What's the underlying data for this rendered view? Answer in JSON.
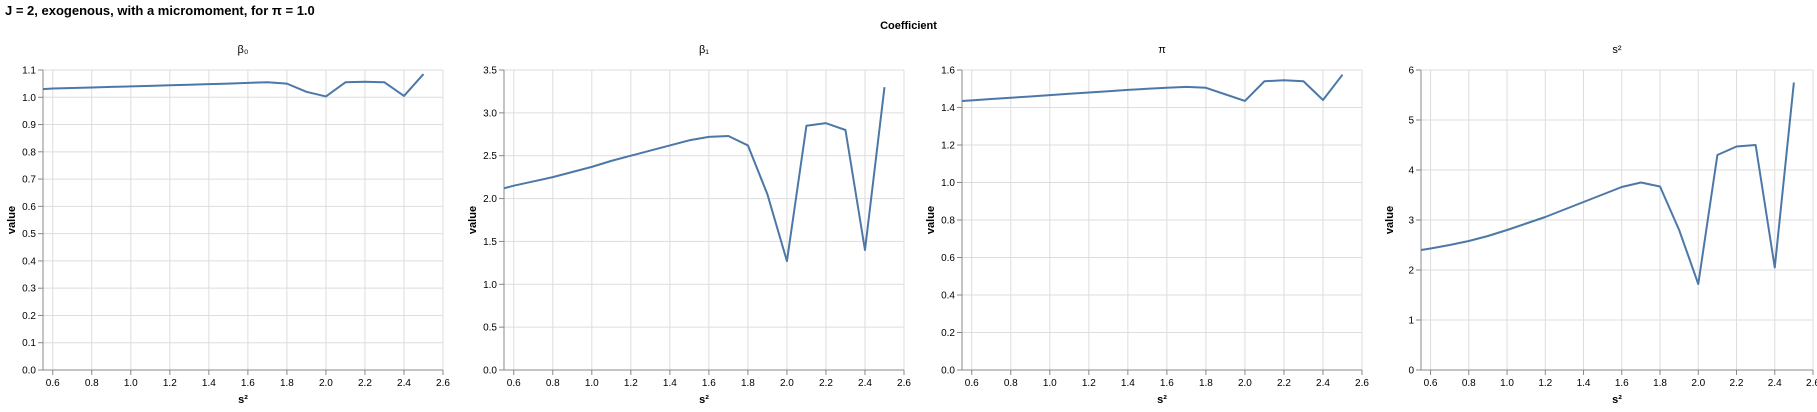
{
  "title": "J = 2, exogenous, with a micromoment,  for π = 1.0",
  "facet_header": "Coefficient",
  "colors": {
    "line": "#4c78a8",
    "grid": "#dddddd",
    "axis": "#888888",
    "text": "#000000"
  },
  "chart_data": [
    {
      "type": "line",
      "panel_title": "β₀",
      "xlabel": "s²",
      "ylabel": "value",
      "xlim": [
        0.55,
        2.6
      ],
      "ylim": [
        0,
        1.1
      ],
      "xticks": [
        0.6,
        0.8,
        1.0,
        1.2,
        1.4,
        1.6,
        1.8,
        2.0,
        2.2,
        2.4,
        2.6
      ],
      "yticks": [
        0.0,
        0.1,
        0.2,
        0.3,
        0.4,
        0.5,
        0.6,
        0.7,
        0.8,
        0.9,
        1.0,
        1.1
      ],
      "grid": true,
      "x": [
        0.55,
        0.6,
        0.7,
        0.8,
        0.9,
        1.0,
        1.1,
        1.2,
        1.3,
        1.4,
        1.5,
        1.6,
        1.7,
        1.8,
        1.9,
        2.0,
        2.1,
        2.2,
        2.3,
        2.4,
        2.5
      ],
      "y": [
        1.03,
        1.032,
        1.034,
        1.036,
        1.038,
        1.04,
        1.042,
        1.044,
        1.046,
        1.048,
        1.05,
        1.053,
        1.055,
        1.05,
        1.02,
        1.003,
        1.055,
        1.057,
        1.055,
        1.005,
        1.085
      ]
    },
    {
      "type": "line",
      "panel_title": "β₁",
      "xlabel": "s²",
      "ylabel": "value",
      "xlim": [
        0.55,
        2.6
      ],
      "ylim": [
        0,
        3.5
      ],
      "xticks": [
        0.6,
        0.8,
        1.0,
        1.2,
        1.4,
        1.6,
        1.8,
        2.0,
        2.2,
        2.4,
        2.6
      ],
      "yticks": [
        0.0,
        0.5,
        1.0,
        1.5,
        2.0,
        2.5,
        3.0,
        3.5
      ],
      "grid": true,
      "x": [
        0.55,
        0.6,
        0.7,
        0.8,
        0.9,
        1.0,
        1.1,
        1.2,
        1.3,
        1.4,
        1.5,
        1.6,
        1.7,
        1.8,
        1.9,
        2.0,
        2.1,
        2.2,
        2.3,
        2.4,
        2.5
      ],
      "y": [
        2.12,
        2.15,
        2.2,
        2.25,
        2.31,
        2.37,
        2.44,
        2.5,
        2.56,
        2.62,
        2.68,
        2.72,
        2.73,
        2.62,
        2.05,
        1.27,
        2.85,
        2.88,
        2.8,
        1.4,
        3.3
      ]
    },
    {
      "type": "line",
      "panel_title": "π",
      "xlabel": "s²",
      "ylabel": "value",
      "xlim": [
        0.55,
        2.6
      ],
      "ylim": [
        0,
        1.6
      ],
      "xticks": [
        0.6,
        0.8,
        1.0,
        1.2,
        1.4,
        1.6,
        1.8,
        2.0,
        2.2,
        2.4,
        2.6
      ],
      "yticks": [
        0.0,
        0.2,
        0.4,
        0.6,
        0.8,
        1.0,
        1.2,
        1.4,
        1.6
      ],
      "grid": true,
      "x": [
        0.55,
        0.6,
        0.7,
        0.8,
        0.9,
        1.0,
        1.1,
        1.2,
        1.3,
        1.4,
        1.5,
        1.6,
        1.7,
        1.8,
        1.9,
        2.0,
        2.1,
        2.2,
        2.3,
        2.4,
        2.5
      ],
      "y": [
        1.435,
        1.438,
        1.445,
        1.452,
        1.459,
        1.466,
        1.473,
        1.48,
        1.487,
        1.494,
        1.5,
        1.505,
        1.51,
        1.505,
        1.47,
        1.435,
        1.54,
        1.545,
        1.54,
        1.44,
        1.575
      ]
    },
    {
      "type": "line",
      "panel_title": "s²",
      "xlabel": "s²",
      "ylabel": "value",
      "xlim": [
        0.55,
        2.6
      ],
      "ylim": [
        0,
        6
      ],
      "xticks": [
        0.6,
        0.8,
        1.0,
        1.2,
        1.4,
        1.6,
        1.8,
        2.0,
        2.2,
        2.4,
        2.6
      ],
      "yticks": [
        0,
        1,
        2,
        3,
        4,
        5,
        6
      ],
      "grid": true,
      "x": [
        0.55,
        0.6,
        0.7,
        0.8,
        0.9,
        1.0,
        1.1,
        1.2,
        1.3,
        1.4,
        1.5,
        1.6,
        1.7,
        1.8,
        1.9,
        2.0,
        2.1,
        2.2,
        2.3,
        2.4,
        2.5
      ],
      "y": [
        2.4,
        2.43,
        2.5,
        2.58,
        2.68,
        2.8,
        2.93,
        3.06,
        3.21,
        3.36,
        3.51,
        3.66,
        3.75,
        3.67,
        2.8,
        1.72,
        4.3,
        4.47,
        4.5,
        2.05,
        5.75
      ]
    }
  ]
}
